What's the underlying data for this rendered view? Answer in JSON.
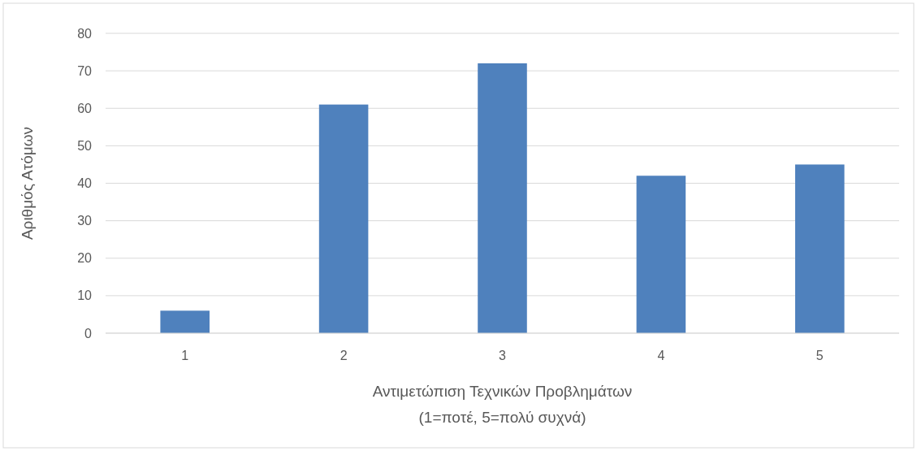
{
  "chart_data": {
    "type": "bar",
    "xlabel": "Αντιμετώπιση Τεχνικών Προβλημάτων\n(1=ποτέ, 5=πολύ συχνά)",
    "ylabel": "Αριθμός Ατόμων",
    "categories": [
      "1",
      "2",
      "3",
      "4",
      "5"
    ],
    "values": [
      6,
      61,
      72,
      42,
      45
    ],
    "color": "#4f81bd",
    "ylim": [
      0,
      80
    ],
    "yticks": [
      0,
      10,
      20,
      30,
      40,
      50,
      60,
      70,
      80
    ],
    "grid": "y"
  }
}
